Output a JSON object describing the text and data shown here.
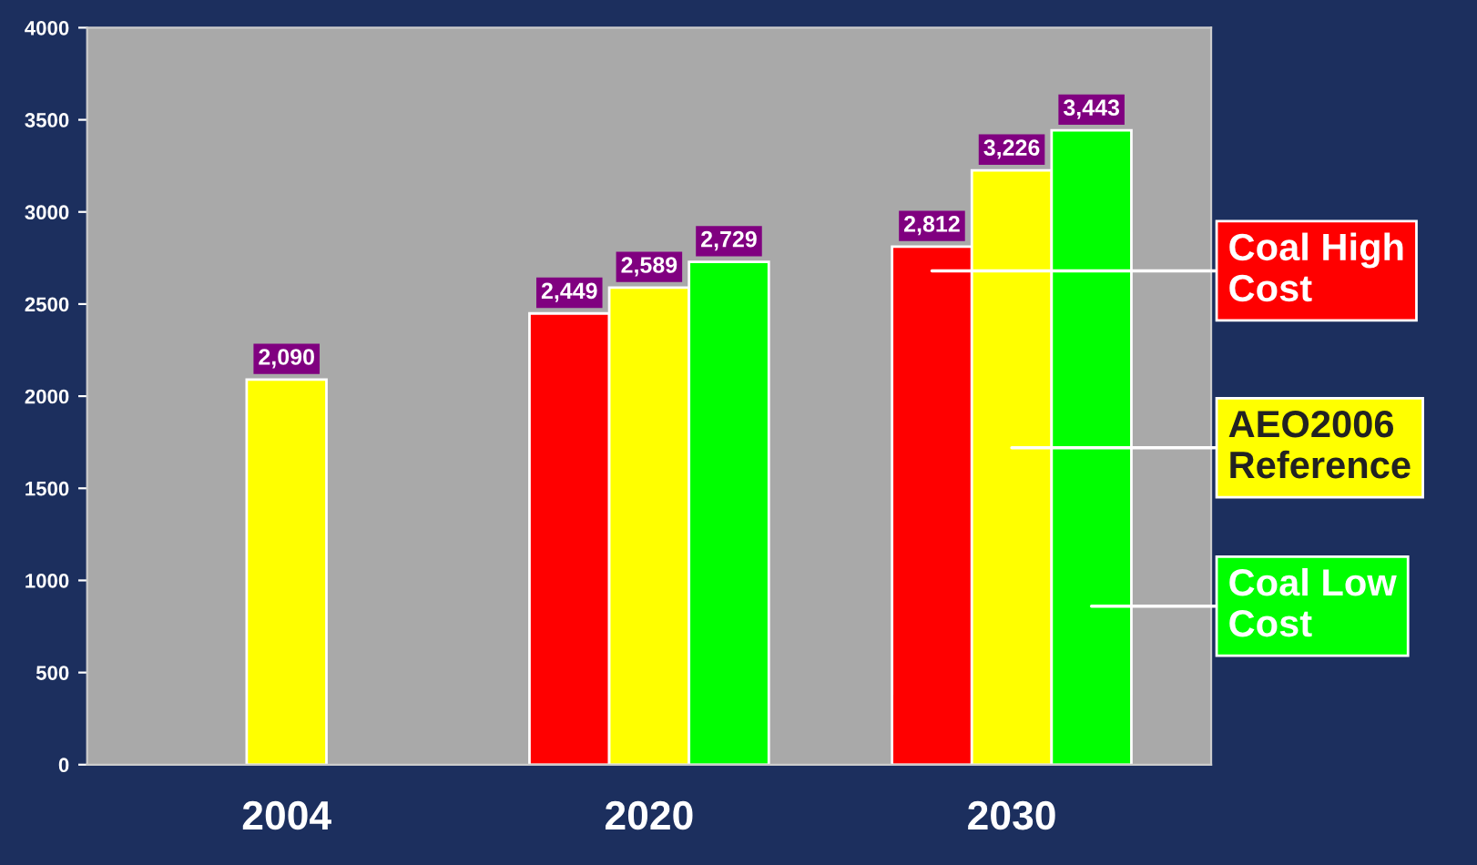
{
  "chart_data": {
    "type": "bar",
    "categories": [
      "2004",
      "2020",
      "2030"
    ],
    "series": [
      {
        "name": "Coal High Cost",
        "color": "#ff0000",
        "values": [
          null,
          2449,
          2812
        ]
      },
      {
        "name": "AEO2006 Reference",
        "color": "#ffff00",
        "values": [
          2090,
          2589,
          3226
        ]
      },
      {
        "name": "Coal Low Cost",
        "color": "#00ff00",
        "values": [
          null,
          2729,
          3443
        ]
      }
    ],
    "ylim": [
      0,
      4000
    ],
    "yticks": [
      0,
      500,
      1000,
      1500,
      2000,
      2500,
      3000,
      3500,
      4000
    ],
    "value_labels": [
      [
        null,
        "2,449",
        "2,812"
      ],
      [
        "2,090",
        "2,589",
        "3,226"
      ],
      [
        null,
        "2,729",
        "3,443"
      ]
    ],
    "grid": false,
    "legend": "right"
  }
}
